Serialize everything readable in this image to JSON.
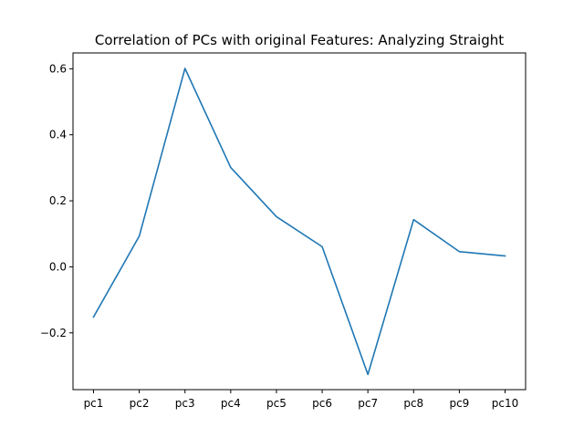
{
  "chart_data": {
    "type": "line",
    "title": "Correlation of PCs with original Features: Analyzing Straight",
    "xlabel": "",
    "ylabel": "",
    "categories": [
      "pc1",
      "pc2",
      "pc3",
      "pc4",
      "pc5",
      "pc6",
      "pc7",
      "pc8",
      "pc9",
      "pc10"
    ],
    "series": [
      {
        "values": [
          -0.152,
          0.093,
          0.601,
          0.301,
          0.152,
          0.061,
          -0.326,
          0.143,
          0.046,
          0.033
        ],
        "color": "#1f77b4"
      }
    ],
    "yticks": [
      -0.2,
      0.0,
      0.2,
      0.4,
      0.6
    ],
    "ytick_labels": [
      "−0.2",
      "0.0",
      "0.2",
      "0.4",
      "0.6"
    ],
    "ylim": [
      -0.372,
      0.648
    ],
    "grid": false,
    "legend": "none"
  }
}
